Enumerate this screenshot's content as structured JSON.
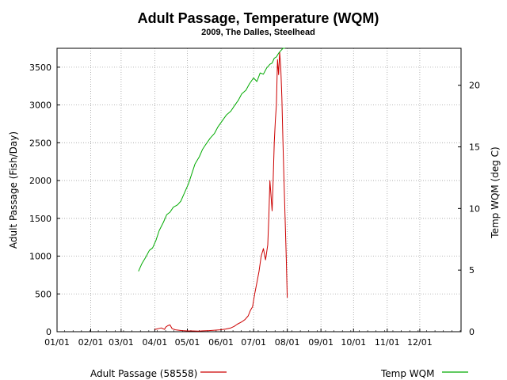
{
  "chart_data": {
    "type": "line",
    "title": "Adult Passage, Temperature (WQM)",
    "subtitle": "2009, The Dalles, Steelhead",
    "ylabel_left": "Adult Passage (Fish/Day)",
    "ylabel_right": "Temp WQM (deg C)",
    "x_tick_labels": [
      "01/01",
      "02/01",
      "03/01",
      "04/01",
      "05/01",
      "06/01",
      "07/01",
      "08/01",
      "09/01",
      "10/01",
      "11/01",
      "12/01"
    ],
    "x_tick_days": [
      0,
      31,
      59,
      90,
      120,
      151,
      181,
      212,
      243,
      273,
      304,
      334
    ],
    "xlim_days": [
      0,
      372
    ],
    "ylim_left": [
      0,
      3750
    ],
    "y_ticks_left": [
      0,
      500,
      1000,
      1500,
      2000,
      2500,
      3000,
      3500
    ],
    "ylim_right": [
      0,
      23
    ],
    "y_ticks_right": [
      0,
      5,
      10,
      15,
      20
    ],
    "grid": true,
    "legend_placement": "bottom",
    "series": [
      {
        "name": "Adult Passage (58558)",
        "axis": "left",
        "color": "#cc0000",
        "x_day": [
          90,
          93,
          96,
          99,
          100,
          102,
          104,
          106,
          109,
          112,
          115,
          120,
          125,
          130,
          135,
          140,
          145,
          150,
          155,
          160,
          163,
          166,
          170,
          173,
          176,
          178,
          180,
          182,
          184,
          186,
          188,
          190,
          192,
          194,
          195,
          196,
          197,
          198,
          199,
          200,
          201,
          202,
          203,
          204,
          205,
          206,
          207,
          208,
          209,
          210,
          211,
          212
        ],
        "y": [
          30,
          40,
          50,
          30,
          60,
          80,
          90,
          40,
          25,
          20,
          15,
          10,
          10,
          8,
          12,
          15,
          20,
          25,
          35,
          50,
          70,
          100,
          130,
          160,
          210,
          280,
          330,
          500,
          650,
          800,
          1000,
          1100,
          950,
          1150,
          1500,
          2000,
          1800,
          1600,
          2000,
          2500,
          2800,
          3000,
          3600,
          3400,
          3700,
          3500,
          3100,
          2500,
          2000,
          1500,
          1000,
          450
        ]
      },
      {
        "name": "Temp WQM",
        "axis": "right",
        "color": "#00aa00",
        "x_day": [
          75,
          78,
          82,
          85,
          88,
          91,
          94,
          98,
          101,
          104,
          107,
          111,
          114,
          117,
          121,
          124,
          127,
          131,
          134,
          137,
          141,
          145,
          148,
          152,
          156,
          160,
          163,
          167,
          170,
          174,
          177,
          181,
          184,
          187,
          190,
          193,
          196,
          198,
          200,
          202,
          204,
          206,
          208,
          210
        ],
        "y": [
          4.9,
          5.5,
          6.1,
          6.6,
          6.8,
          7.4,
          8.2,
          8.9,
          9.5,
          9.7,
          10.1,
          10.3,
          10.6,
          11.2,
          12.0,
          12.8,
          13.6,
          14.2,
          14.8,
          15.2,
          15.7,
          16.1,
          16.6,
          17.1,
          17.6,
          17.9,
          18.3,
          18.8,
          19.3,
          19.6,
          20.1,
          20.6,
          20.3,
          21.0,
          20.9,
          21.4,
          21.7,
          21.8,
          22.2,
          22.3,
          22.6,
          22.8,
          23.0,
          23.3
        ]
      }
    ]
  }
}
